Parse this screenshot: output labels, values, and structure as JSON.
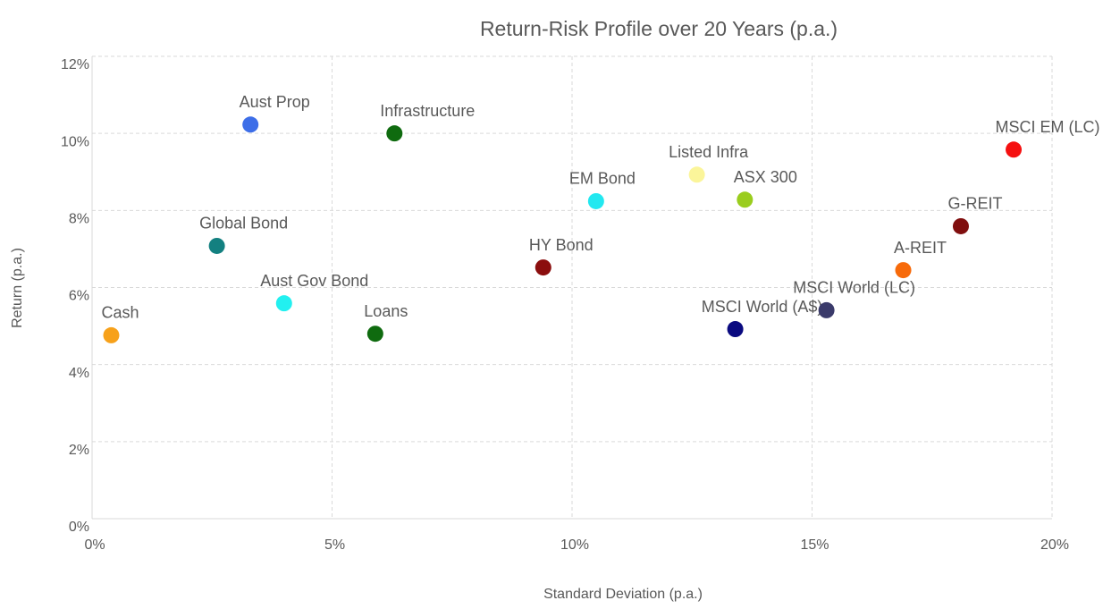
{
  "chart_data": {
    "type": "scatter",
    "title": "Return-Risk Profile over 20 Years (p.a.)",
    "x_label": "Standard Deviation (p.a.)",
    "y_label": "Return (p.a.)",
    "xlim": [
      0,
      20
    ],
    "xticks": [
      {
        "value": 0,
        "label": "0%"
      },
      {
        "value": 5,
        "label": "5%"
      },
      {
        "value": 10,
        "label": "10%"
      },
      {
        "value": 15,
        "label": "15%"
      },
      {
        "value": 20,
        "label": "20%"
      }
    ],
    "ylim": [
      0,
      12
    ],
    "yticks": [
      {
        "value": 0,
        "label": "0%"
      },
      {
        "value": 2,
        "label": "2%"
      },
      {
        "value": 4,
        "label": "4%"
      },
      {
        "value": 6,
        "label": "6%"
      },
      {
        "value": 8,
        "label": "8%"
      },
      {
        "value": 10,
        "label": "10%"
      },
      {
        "value": 12,
        "label": "12%"
      }
    ],
    "grid": true,
    "points": [
      {
        "name": "Cash",
        "color": "#f7a11a",
        "x": 0.4,
        "y": 4.76
      },
      {
        "name": "Aust Prop",
        "color": "#3d6ee8",
        "x": 3.3,
        "y": 10.23
      },
      {
        "name": "Infrastructure",
        "color": "#0f6b0f",
        "x": 6.3,
        "y": 10.0
      },
      {
        "name": "Global Bond",
        "color": "#138080",
        "x": 2.6,
        "y": 7.08
      },
      {
        "name": "Aust Gov Bond",
        "color": "#22f0f0",
        "x": 4.0,
        "y": 5.59
      },
      {
        "name": "Loans",
        "color": "#0f6b0f",
        "x": 5.9,
        "y": 4.8
      },
      {
        "name": "HY Bond",
        "color": "#8b0e0e",
        "x": 9.4,
        "y": 6.52
      },
      {
        "name": "EM Bond",
        "color": "#22e8f0",
        "x": 10.5,
        "y": 8.24
      },
      {
        "name": "Listed Infra",
        "color": "#fbf59a",
        "x": 12.6,
        "y": 8.93
      },
      {
        "name": "ASX 300",
        "color": "#9acd1e",
        "x": 13.6,
        "y": 8.28
      },
      {
        "name": "MSCI World (A$)",
        "color": "#0a0a80",
        "x": 13.4,
        "y": 4.92
      },
      {
        "name": "MSCI World (LC)",
        "color": "#3a3a6a",
        "x": 15.3,
        "y": 5.41
      },
      {
        "name": "A-REIT",
        "color": "#f76a0a",
        "x": 16.9,
        "y": 6.45
      },
      {
        "name": "G-REIT",
        "color": "#800e0e",
        "x": 18.1,
        "y": 7.59
      },
      {
        "name": "MSCI EM (LC)",
        "color": "#f51010",
        "x": 19.2,
        "y": 9.58
      }
    ]
  }
}
